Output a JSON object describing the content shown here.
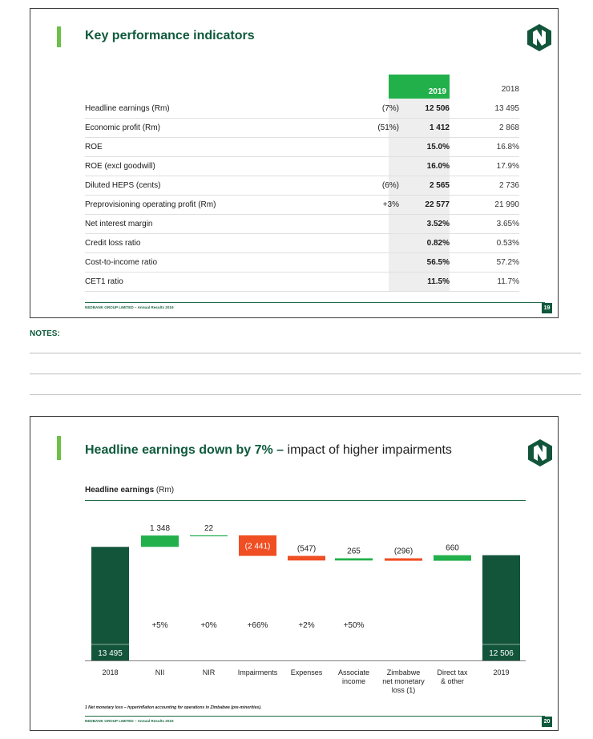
{
  "slide1": {
    "title": "Key performance indicators",
    "columns": {
      "current": "2019",
      "prior": "2018"
    },
    "rows": [
      {
        "label": "Headline earnings (Rm)",
        "change": "(7%)",
        "v2019": "12 506",
        "v2018": "13 495"
      },
      {
        "label": "Economic profit (Rm)",
        "change": "(51%)",
        "v2019": "1 412",
        "v2018": "2 868"
      },
      {
        "label": "ROE",
        "change": "",
        "v2019": "15.0%",
        "v2018": "16.8%"
      },
      {
        "label": "ROE (excl goodwill)",
        "change": "",
        "v2019": "16.0%",
        "v2018": "17.9%"
      },
      {
        "label": "Diluted HEPS (cents)",
        "change": "(6%)",
        "v2019": "2 565",
        "v2018": "2 736"
      },
      {
        "label": "Preprovisioning operating profit (Rm)",
        "change": "+3%",
        "v2019": "22 577",
        "v2018": "21 990"
      },
      {
        "label": "Net interest margin",
        "change": "",
        "v2019": "3.52%",
        "v2018": "3.65%"
      },
      {
        "label": "Credit loss ratio",
        "change": "",
        "v2019": "0.82%",
        "v2018": "0.53%"
      },
      {
        "label": "Cost-to-income ratio",
        "change": "",
        "v2019": "56.5%",
        "v2018": "57.2%"
      },
      {
        "label": "CET1 ratio",
        "change": "",
        "v2019": "11.5%",
        "v2018": "11.7%"
      }
    ],
    "footer": "NEDBANK GROUP LIMITED – Annual Results 2019",
    "page": "19"
  },
  "notes": {
    "label": "NOTES:"
  },
  "slide2": {
    "title_bold": "Headline earnings down by 7% – ",
    "title_light": "impact of higher impairments",
    "subtitle_bold": "Headline earnings ",
    "subtitle_light": "(Rm)",
    "footnote": "1 Net monetary loss – hyperinflation accounting for operations in Zimbabwe (pre-minorities).",
    "footer": "NEDBANK GROUP LIMITED – Annual Results 2019",
    "page": "20"
  },
  "colors": {
    "dark_green": "#12553b",
    "bright_green": "#22b04b",
    "red": "#f04e23",
    "accent": "#6cc04a"
  },
  "chart_data": {
    "type": "bar",
    "subtype": "waterfall",
    "categories": [
      "2018",
      "NII",
      "NIR",
      "Impairments",
      "Expenses",
      "Associate income",
      "Zimbabwe net monetary loss (1)",
      "Direct tax & other",
      "2019"
    ],
    "category_lines": [
      [
        "2018"
      ],
      [
        "NII"
      ],
      [
        "NIR"
      ],
      [
        "Impairments"
      ],
      [
        "Expenses"
      ],
      [
        "Associate",
        "income"
      ],
      [
        "Zimbabwe",
        "net monetary",
        "loss (1)"
      ],
      [
        "Direct tax",
        "& other"
      ],
      [
        "2019"
      ]
    ],
    "values": [
      13495,
      1348,
      22,
      -2441,
      -547,
      265,
      -296,
      660,
      12506
    ],
    "value_labels": [
      "13 495",
      "1 348",
      "22",
      "(2 441)",
      "(547)",
      "265",
      "(296)",
      "660",
      "12 506"
    ],
    "kinds": [
      "total",
      "increase",
      "increase",
      "decrease",
      "decrease",
      "increase",
      "decrease",
      "increase",
      "total"
    ],
    "pct_labels": [
      "",
      "+5%",
      "+0%",
      "+66%",
      "+2%",
      "+50%",
      "",
      "",
      ""
    ],
    "title": "Headline earnings",
    "ylabel": "",
    "grid": false
  }
}
